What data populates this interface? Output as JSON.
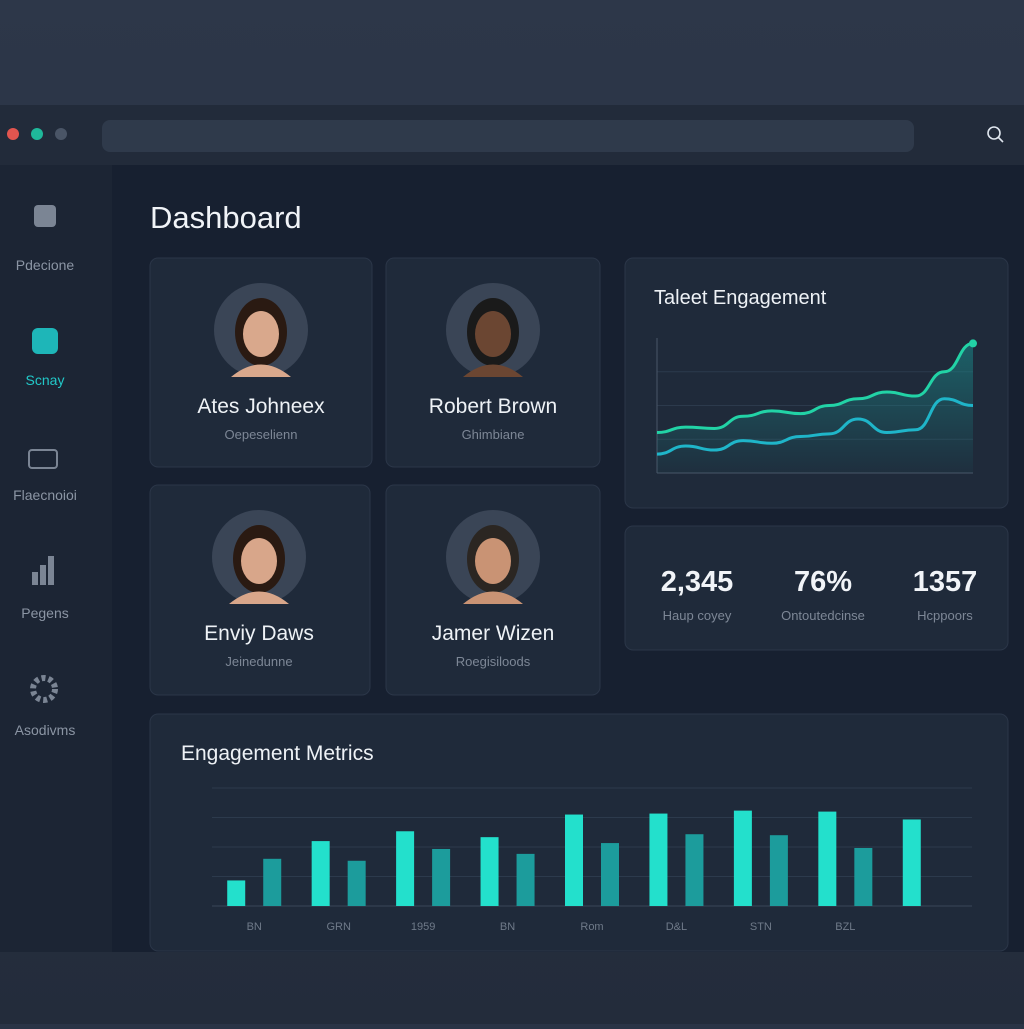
{
  "sidebar": {
    "items": [
      "Pdecione",
      "Scnay",
      "Flaecnoioi",
      "Pegens",
      "Asodivms"
    ]
  },
  "header": {
    "title": "Dashboard"
  },
  "profiles": [
    {
      "name": "Ates Johneex",
      "role": "Oepeselienn"
    },
    {
      "name": "Robert Brown",
      "role": "Ghimbiane"
    },
    {
      "name": "Enviy Daws",
      "role": "Jeinedunne"
    },
    {
      "name": "Jamer Wizen",
      "role": "Roegisiloods"
    }
  ],
  "engagement_chart": {
    "type": "line",
    "title": "Taleet Engagement",
    "ylim": [
      0,
      100
    ],
    "yticks": [
      25,
      50,
      75
    ],
    "series": [
      {
        "color": "#22d3a6",
        "values": [
          30,
          34,
          33,
          42,
          46,
          44,
          50,
          55,
          60,
          57,
          75,
          96
        ]
      },
      {
        "color": "#1fb5c9",
        "values": [
          14,
          20,
          17,
          24,
          22,
          27,
          29,
          40,
          30,
          32,
          55,
          50
        ]
      }
    ]
  },
  "stats": [
    {
      "value": "2,345",
      "label": "Haup coyey"
    },
    {
      "value": "76%",
      "label": "Ontoutedcinse"
    },
    {
      "value": "1357",
      "label": "Hcppoors"
    }
  ],
  "metrics_chart": {
    "type": "bar",
    "title": "Engagement Metrics",
    "categories": [
      "BN",
      "GRN",
      "1959",
      "BN",
      "Rom",
      "D&L",
      "STN",
      "BZL",
      null
    ],
    "ylim": [
      0,
      120
    ],
    "yticks": [
      30,
      60,
      90,
      120
    ],
    "series": [
      {
        "color": "#23e0cc",
        "values": [
          26,
          66,
          76,
          70,
          93,
          94,
          97,
          96,
          88
        ]
      },
      {
        "color": "#1c9c9c",
        "values": [
          48,
          46,
          58,
          53,
          64,
          73,
          72,
          59,
          null
        ]
      }
    ]
  }
}
